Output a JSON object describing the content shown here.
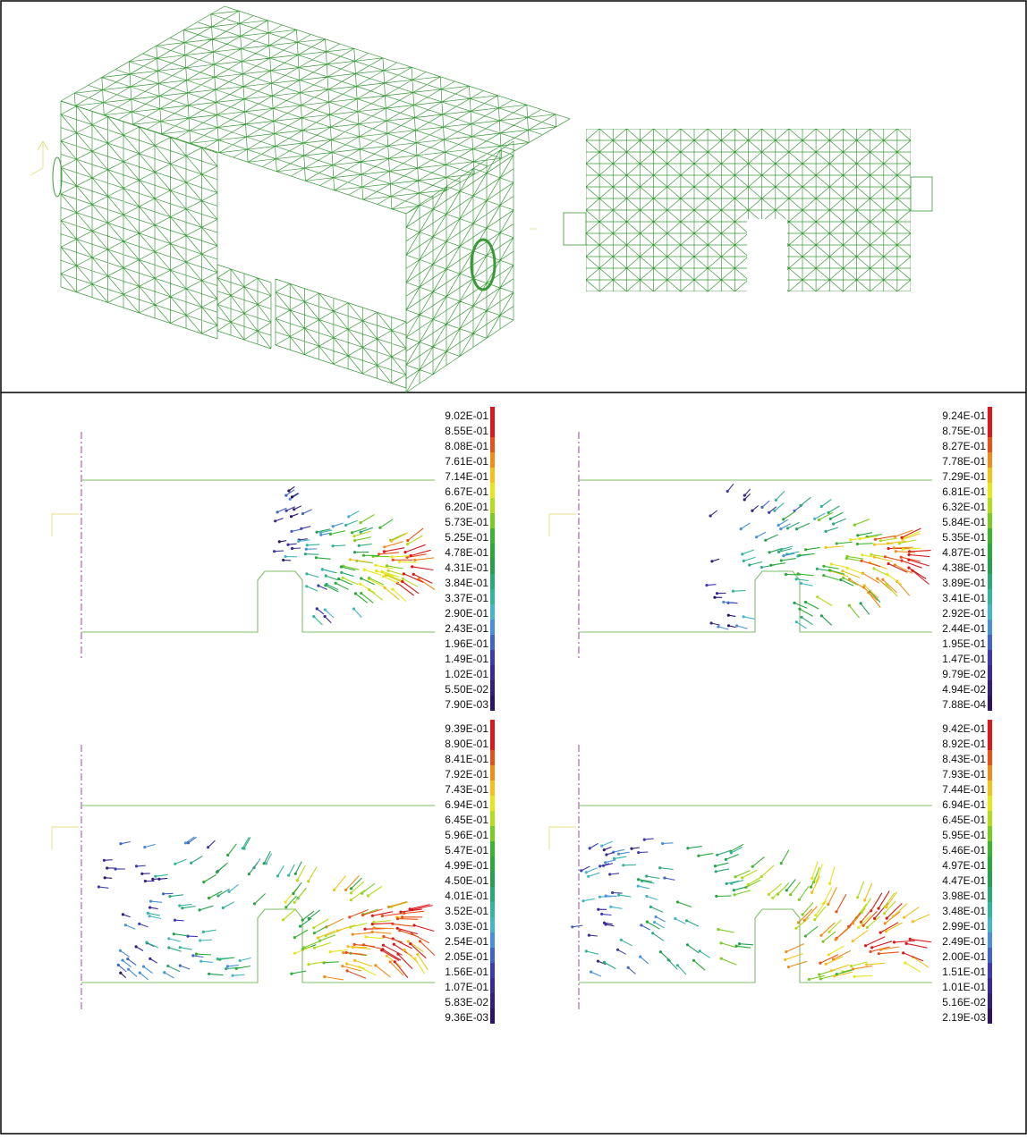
{
  "panels": [
    {
      "name": "velocity-panel-1",
      "legend": [
        "9.02E-01",
        "8.55E-01",
        "8.08E-01",
        "7.61E-01",
        "7.14E-01",
        "6.67E-01",
        "6.20E-01",
        "5.73E-01",
        "5.25E-01",
        "4.78E-01",
        "4.31E-01",
        "3.84E-01",
        "3.37E-01",
        "2.90E-01",
        "2.43E-01",
        "1.96E-01",
        "1.49E-01",
        "1.02E-01",
        "5.50E-02",
        "7.90E-03"
      ],
      "spread": 0.25
    },
    {
      "name": "velocity-panel-2",
      "legend": [
        "9.24E-01",
        "8.75E-01",
        "8.27E-01",
        "7.78E-01",
        "7.29E-01",
        "6.81E-01",
        "6.32E-01",
        "5.84E-01",
        "5.35E-01",
        "4.87E-01",
        "4.38E-01",
        "3.89E-01",
        "3.41E-01",
        "2.92E-01",
        "2.44E-01",
        "1.95E-01",
        "1.47E-01",
        "9.79E-02",
        "4.94E-02",
        "7.88E-04"
      ],
      "spread": 0.45
    },
    {
      "name": "velocity-panel-3",
      "legend": [
        "9.39E-01",
        "8.90E-01",
        "8.41E-01",
        "7.92E-01",
        "7.43E-01",
        "6.94E-01",
        "6.45E-01",
        "5.96E-01",
        "5.47E-01",
        "4.99E-01",
        "4.50E-01",
        "4.01E-01",
        "3.52E-01",
        "3.03E-01",
        "2.54E-01",
        "2.05E-01",
        "1.56E-01",
        "1.07E-01",
        "5.83E-02",
        "9.36E-03"
      ],
      "spread": 0.8
    },
    {
      "name": "velocity-panel-4",
      "legend": [
        "9.42E-01",
        "8.92E-01",
        "8.43E-01",
        "7.93E-01",
        "7.44E-01",
        "6.94E-01",
        "6.45E-01",
        "5.95E-01",
        "5.46E-01",
        "4.97E-01",
        "4.47E-01",
        "3.98E-01",
        "3.48E-01",
        "2.99E-01",
        "2.49E-01",
        "2.00E-01",
        "1.51E-01",
        "1.01E-01",
        "5.16E-02",
        "2.19E-03"
      ],
      "spread": 1.0
    }
  ],
  "colors": {
    "mesh": "#3a9a3a",
    "outline": "#7fbf6a",
    "axis_line": "#9a4aa0",
    "triad": "#e8e08a",
    "legend_ramp": [
      "#d7191c",
      "#d7191c",
      "#e8501a",
      "#f08c1a",
      "#f2c21a",
      "#e6e61a",
      "#b4dc1e",
      "#7acb26",
      "#3cb432",
      "#2aa83a",
      "#26a050",
      "#2ea878",
      "#36b49c",
      "#48b4c8",
      "#4a90d8",
      "#4264c4",
      "#3c3cb0",
      "#3a2a96",
      "#341e7c",
      "#2c1464"
    ]
  }
}
